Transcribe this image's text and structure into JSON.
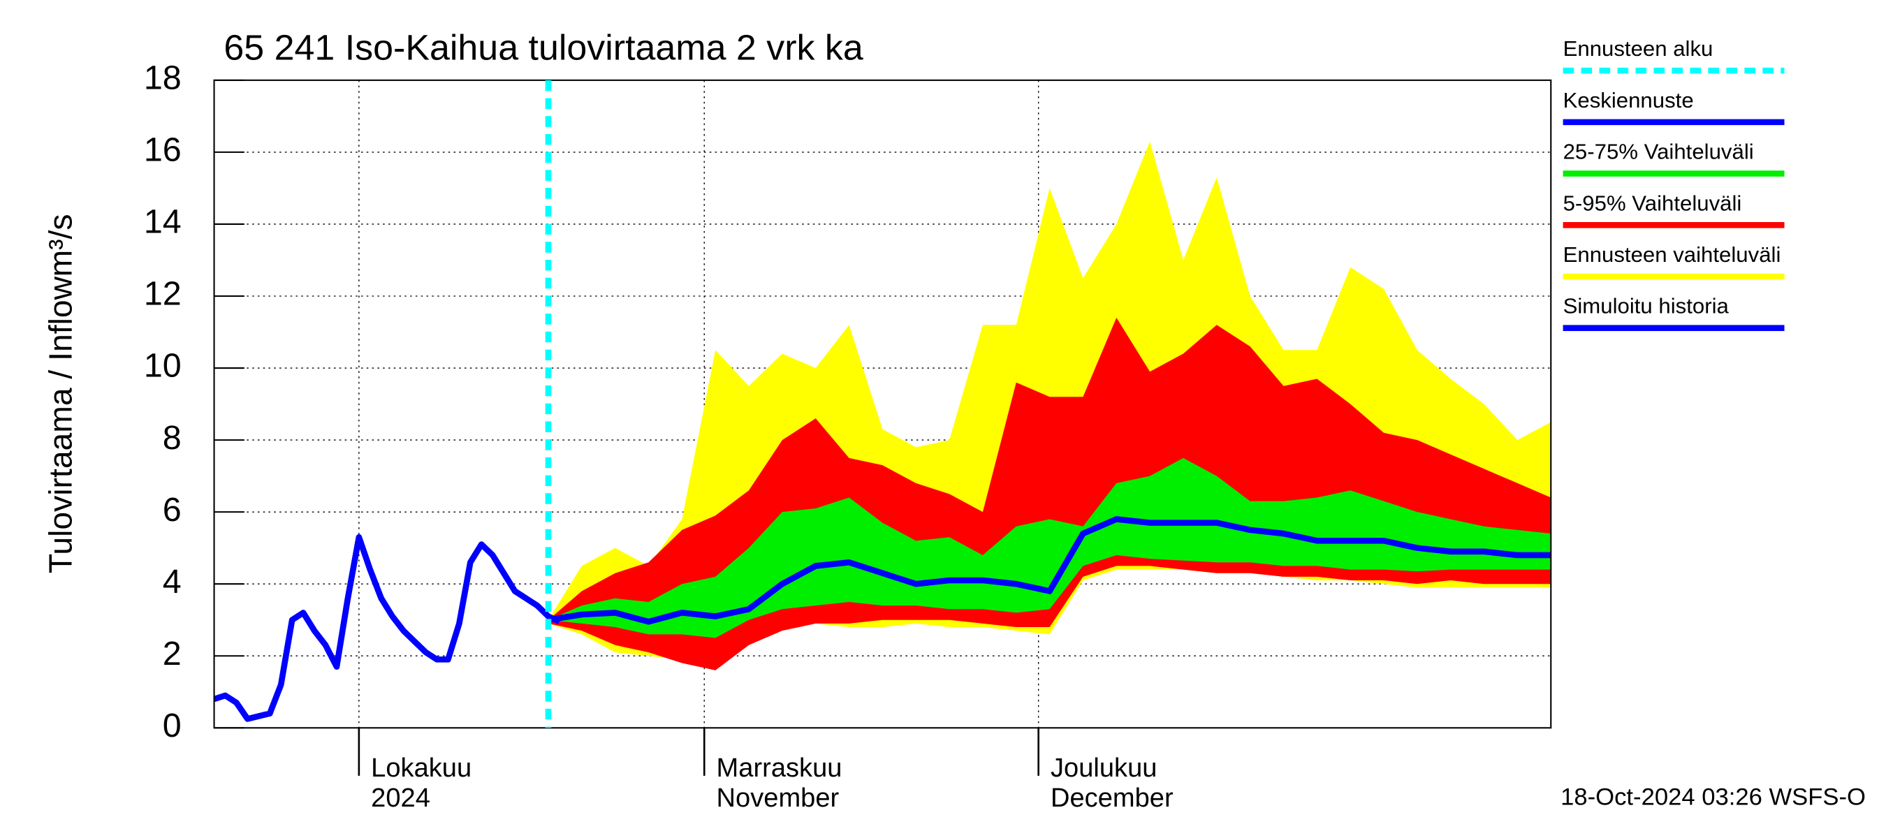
{
  "chart_data": {
    "type": "fan",
    "title": "65 241 Iso-Kaihua tulovirtaama 2 vrk ka",
    "ylabel": "Tulovirtaama / Inflow",
    "yunit": "m³/s",
    "footer": "18-Oct-2024 03:26 WSFS-O",
    "xlim": [
      0,
      120
    ],
    "ylim": [
      0,
      18
    ],
    "yticks": [
      0,
      2,
      4,
      6,
      8,
      10,
      12,
      14,
      16,
      18
    ],
    "xticks": [
      {
        "value": 13,
        "label": [
          "Lokakuu",
          "2024"
        ]
      },
      {
        "value": 44,
        "label": [
          "Marraskuu",
          "November"
        ]
      },
      {
        "value": 74,
        "label": [
          "Joulukuu",
          "December"
        ]
      }
    ],
    "grid": true,
    "forecast_start": {
      "name": "Ennusteen alku",
      "color": "#00ffff",
      "x": 30
    },
    "forecast_x": [
      30,
      33,
      36,
      39,
      42,
      45,
      48,
      51,
      54,
      57,
      60,
      63,
      66,
      69,
      72,
      75,
      78,
      81,
      84,
      87,
      90,
      93,
      96,
      99,
      102,
      105,
      108,
      111,
      114,
      117,
      120
    ],
    "bands": [
      {
        "name": "Ennusteen vaihteluväli",
        "color": "#ffff00",
        "lower": [
          2.9,
          2.6,
          2.1,
          2.0,
          1.9,
          1.6,
          2.5,
          2.9,
          2.9,
          2.8,
          2.8,
          2.9,
          2.8,
          2.8,
          2.7,
          2.6,
          4.1,
          4.4,
          4.4,
          4.4,
          4.3,
          4.3,
          4.2,
          4.1,
          4.1,
          4.0,
          3.9,
          3.9,
          3.9,
          3.9,
          3.9
        ],
        "upper": [
          3.0,
          4.5,
          5.0,
          4.5,
          5.8,
          10.5,
          9.5,
          10.4,
          10.0,
          11.2,
          8.3,
          7.8,
          8.0,
          11.2,
          11.2,
          15.0,
          12.5,
          14.0,
          16.3,
          13.0,
          15.3,
          12.0,
          10.5,
          10.5,
          12.8,
          12.2,
          10.5,
          9.7,
          9.0,
          8.0,
          8.5
        ]
      },
      {
        "name": "5-95% Vaihteluväli",
        "color": "#ff0000",
        "lower": [
          2.9,
          2.7,
          2.3,
          2.1,
          1.8,
          1.6,
          2.3,
          2.7,
          2.9,
          2.9,
          3.0,
          3.0,
          3.0,
          2.9,
          2.8,
          2.8,
          4.2,
          4.5,
          4.5,
          4.4,
          4.3,
          4.3,
          4.2,
          4.2,
          4.1,
          4.1,
          4.0,
          4.1,
          4.0,
          4.0,
          4.0
        ],
        "upper": [
          3.0,
          3.8,
          4.3,
          4.6,
          5.5,
          5.9,
          6.6,
          8.0,
          8.6,
          7.5,
          7.3,
          6.8,
          6.5,
          6.0,
          9.6,
          9.2,
          9.2,
          11.4,
          9.9,
          10.4,
          11.2,
          10.6,
          9.5,
          9.7,
          9.0,
          8.2,
          8.0,
          7.6,
          7.2,
          6.8,
          6.4
        ]
      },
      {
        "name": "25-75% Vaihteluväli",
        "color": "#00ee00",
        "lower": [
          3.0,
          2.9,
          2.8,
          2.6,
          2.6,
          2.5,
          3.0,
          3.3,
          3.4,
          3.5,
          3.4,
          3.4,
          3.3,
          3.3,
          3.2,
          3.3,
          4.5,
          4.8,
          4.7,
          4.65,
          4.6,
          4.6,
          4.5,
          4.5,
          4.4,
          4.4,
          4.35,
          4.4,
          4.4,
          4.4,
          4.4
        ],
        "upper": [
          3.0,
          3.4,
          3.6,
          3.5,
          4.0,
          4.2,
          5.0,
          6.0,
          6.1,
          6.4,
          5.7,
          5.2,
          5.3,
          4.8,
          5.6,
          5.8,
          5.6,
          6.8,
          7.0,
          7.5,
          7.0,
          6.3,
          6.3,
          6.4,
          6.6,
          6.3,
          6.0,
          5.8,
          5.6,
          5.5,
          5.4
        ]
      }
    ],
    "series": [
      {
        "name": "Keskiennuste",
        "color": "#0000ff",
        "x": [
          30,
          33,
          36,
          39,
          42,
          45,
          48,
          51,
          54,
          57,
          60,
          63,
          66,
          69,
          72,
          75,
          78,
          81,
          84,
          87,
          90,
          93,
          96,
          99,
          102,
          105,
          108,
          111,
          114,
          117,
          120
        ],
        "values": [
          3.0,
          3.15,
          3.2,
          2.95,
          3.2,
          3.1,
          3.3,
          4.0,
          4.5,
          4.6,
          4.3,
          4.0,
          4.1,
          4.1,
          4.0,
          3.8,
          5.4,
          5.8,
          5.7,
          5.7,
          5.7,
          5.5,
          5.4,
          5.2,
          5.2,
          5.2,
          5.0,
          4.9,
          4.9,
          4.8,
          4.8
        ]
      },
      {
        "name": "Simuloitu historia",
        "color": "#0000ff",
        "x": [
          0,
          1,
          2,
          3,
          5,
          6,
          7,
          8,
          9,
          10,
          11,
          12,
          13,
          14,
          15,
          16,
          17,
          18,
          19,
          20,
          21,
          22,
          23,
          24,
          25,
          26,
          27,
          28,
          29,
          30,
          31
        ],
        "values": [
          0.8,
          0.9,
          0.7,
          0.25,
          0.4,
          1.2,
          3.0,
          3.2,
          2.7,
          2.3,
          1.7,
          3.6,
          5.3,
          4.4,
          3.6,
          3.1,
          2.7,
          2.4,
          2.1,
          1.9,
          1.9,
          2.9,
          4.6,
          5.1,
          4.8,
          4.3,
          3.8,
          3.6,
          3.4,
          3.1,
          2.95
        ]
      }
    ]
  }
}
